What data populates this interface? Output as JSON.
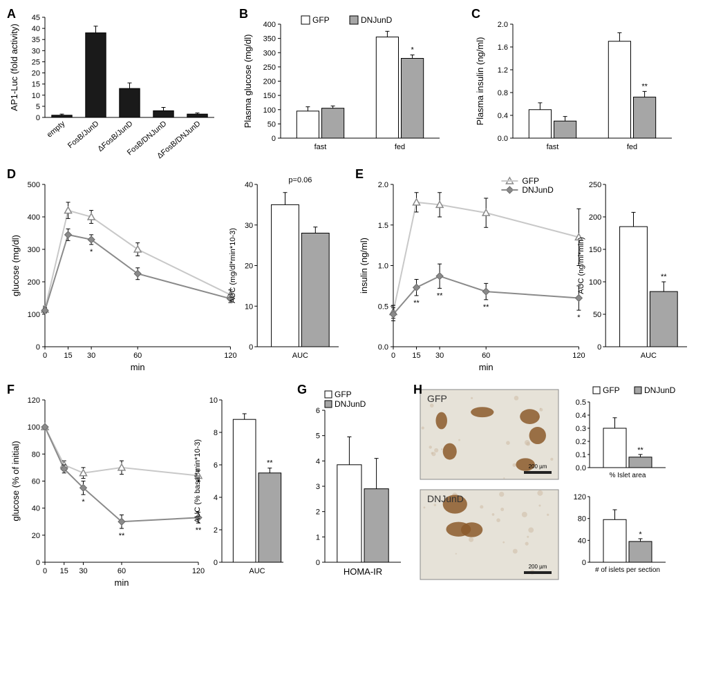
{
  "panels": {
    "A": {
      "label": "A",
      "ylabel": "AP1-Luc (fold activity)",
      "ymax": 45,
      "ytick": 5,
      "categories": [
        "empty",
        "FosB/JunD",
        "ΔFosB/JunD",
        "FosB/DNJunD",
        "ΔFosB/DNJunD"
      ],
      "values": [
        1,
        38,
        13,
        3,
        1.5
      ],
      "errors": [
        0.5,
        3,
        2.5,
        1.5,
        0.5
      ],
      "bar_color": "#1a1a1a"
    },
    "B": {
      "label": "B",
      "ylabel": "Plasma glucose (mg/dl)",
      "legend": [
        "GFP",
        "DNJunD"
      ],
      "ymax": 400,
      "ytick": 50,
      "groups": [
        "fast",
        "fed"
      ],
      "gfp": [
        95,
        355
      ],
      "gfp_err": [
        15,
        20
      ],
      "dn": [
        105,
        280
      ],
      "dn_err": [
        8,
        12
      ],
      "sig": [
        "",
        "*"
      ]
    },
    "C": {
      "label": "C",
      "ylabel": "Plasma insulin (ng/ml)",
      "ymax": 2,
      "ytick": 0.4,
      "groups": [
        "fast",
        "fed"
      ],
      "gfp": [
        0.5,
        1.7
      ],
      "gfp_err": [
        0.12,
        0.15
      ],
      "dn": [
        0.3,
        0.72
      ],
      "dn_err": [
        0.08,
        0.1
      ],
      "sig": [
        "",
        "**"
      ]
    },
    "D": {
      "label": "D",
      "ylabel": "glucose (mg/dl)",
      "xlabel": "min",
      "x": [
        0,
        15,
        30,
        60,
        120
      ],
      "ymax": 500,
      "ytick": 100,
      "gfp": [
        115,
        420,
        400,
        300,
        160
      ],
      "gfp_err": [
        10,
        25,
        20,
        20,
        15
      ],
      "dn": [
        112,
        345,
        330,
        225,
        148
      ],
      "dn_err": [
        8,
        18,
        15,
        18,
        12
      ],
      "sig": [
        "",
        "",
        "*",
        "",
        ""
      ],
      "auc": {
        "ylabel": "AUC (mg/dl*min*10-3)",
        "ymax": 40,
        "ytick": 10,
        "gfp": 35,
        "gfp_err": 3,
        "dn": 28,
        "dn_err": 1.5,
        "note": "p=0.06"
      }
    },
    "E": {
      "label": "E",
      "ylabel": "insulin (ng/ml)",
      "xlabel": "min",
      "legend": [
        "GFP",
        "DNJunD"
      ],
      "x": [
        0,
        15,
        30,
        60,
        120
      ],
      "ymax": 2,
      "ytick": 0.5,
      "gfp": [
        0.43,
        1.78,
        1.75,
        1.65,
        1.35
      ],
      "gfp_err": [
        0.08,
        0.12,
        0.15,
        0.18,
        0.35
      ],
      "dn": [
        0.4,
        0.73,
        0.87,
        0.68,
        0.6
      ],
      "dn_err": [
        0.08,
        0.1,
        0.15,
        0.1,
        0.15
      ],
      "sig": [
        "",
        "**",
        "**",
        "**",
        "*"
      ],
      "auc": {
        "ylabel": "AUC (ng/ml*min)",
        "ymax": 250,
        "ytick": 50,
        "gfp": 185,
        "gfp_err": 22,
        "dn": 85,
        "dn_err": 15,
        "sig": "**"
      }
    },
    "F": {
      "label": "F",
      "ylabel": "glucose (% of initial)",
      "xlabel": "min",
      "x": [
        0,
        15,
        30,
        60,
        120
      ],
      "ymax": 120,
      "ytick": 20,
      "gfp": [
        100,
        72,
        66,
        70,
        64
      ],
      "gfp_err": [
        0,
        3,
        4,
        5,
        4
      ],
      "dn": [
        100,
        69,
        55,
        30,
        33
      ],
      "dn_err": [
        0,
        3,
        5,
        5,
        4
      ],
      "sig": [
        "",
        "",
        "*",
        "**",
        "**"
      ],
      "auc": {
        "ylabel": "AUC (% basal*min*10-3)",
        "ymax": 10,
        "ytick": 2,
        "gfp": 8.8,
        "gfp_err": 0.35,
        "dn": 5.5,
        "dn_err": 0.3,
        "sig": "**"
      }
    },
    "G": {
      "label": "G",
      "ylabel": "HOMA-IR",
      "xlabel": "HOMA-IR",
      "legend": [
        "GFP",
        "DNJunD"
      ],
      "ymax": 6,
      "ytick": 1,
      "gfp": 3.85,
      "gfp_err": 1.1,
      "dn": 2.9,
      "dn_err": 1.2
    },
    "H": {
      "label": "H",
      "micrographs": [
        "GFP",
        "DNJunD"
      ],
      "scalebar": "200 µm",
      "charts": [
        {
          "ylabel": "% Islet area",
          "ymax": 0.5,
          "ytick": 0.1,
          "gfp": 0.3,
          "gfp_err": 0.08,
          "dn": 0.08,
          "dn_err": 0.02,
          "sig": "**"
        },
        {
          "ylabel": "# of islets per section",
          "ymax": 120,
          "ytick": 40,
          "gfp": 78,
          "gfp_err": 18,
          "dn": 38,
          "dn_err": 5,
          "sig": "*"
        }
      ],
      "legend": [
        "GFP",
        "DNJunD"
      ]
    }
  },
  "colors": {
    "gfp_bar": "#ffffff",
    "dn_bar": "#a6a6a6",
    "dark_bar": "#1a1a1a",
    "gfp_line": "#c8c8c8",
    "dn_line": "#8a8a8a"
  }
}
